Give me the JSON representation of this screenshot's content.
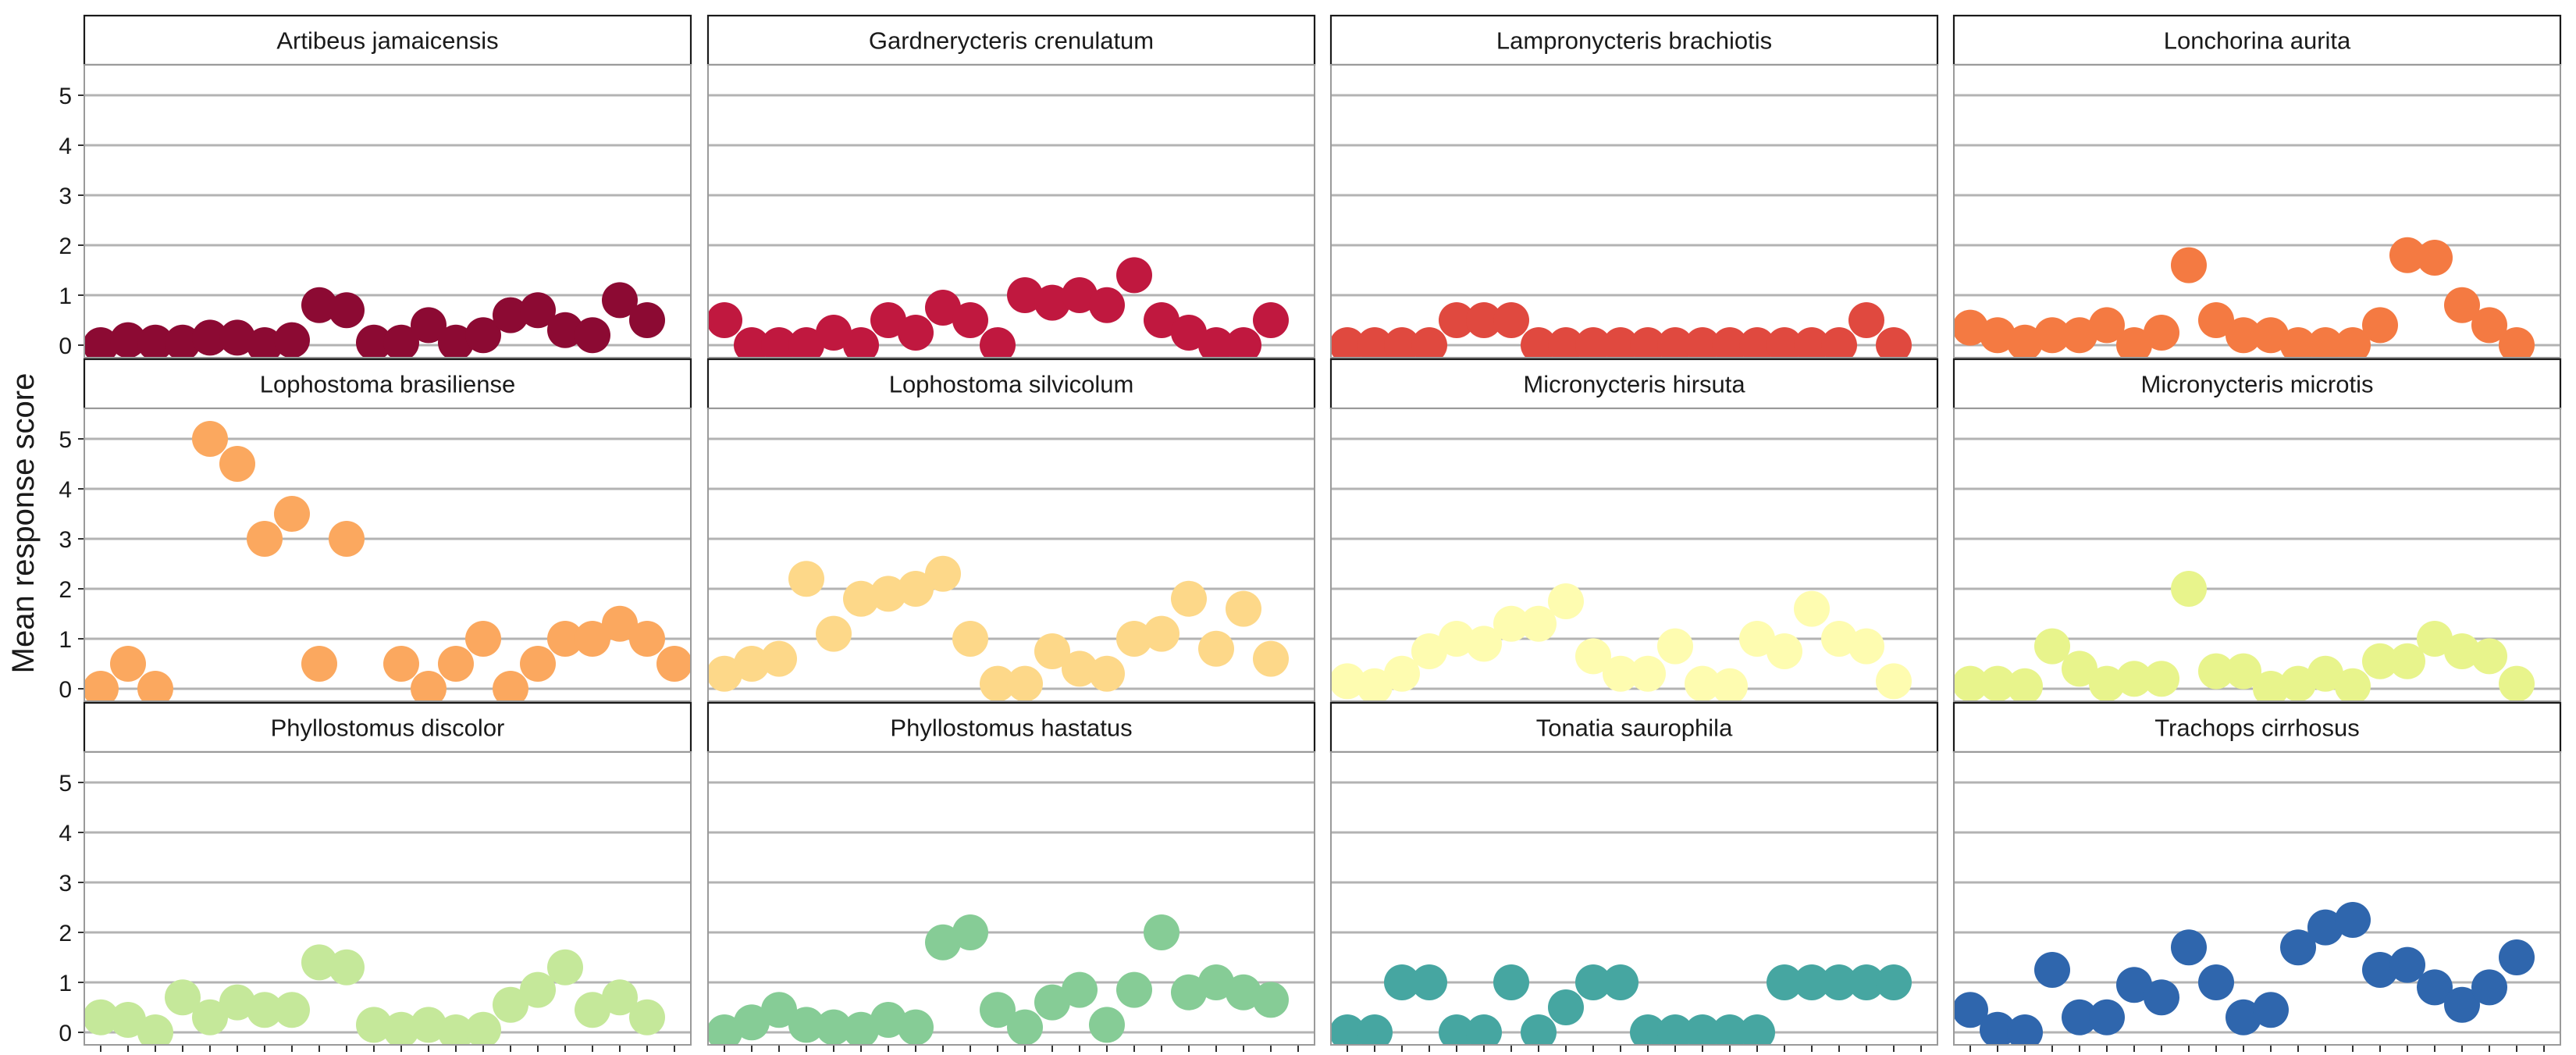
{
  "chart_data": {
    "type": "scatter",
    "layout": "facet-grid",
    "facet_cols": 4,
    "ylabel": "Mean response score",
    "xlabel": "",
    "ylim": [
      0,
      5
    ],
    "yticks": [
      0,
      1,
      2,
      3,
      4,
      5
    ],
    "grid": true,
    "legend": "none",
    "n_points_per_panel": 22,
    "panels": [
      {
        "title": "Artibeus jamaicensis",
        "color": "#8c0a33",
        "values": [
          0,
          0.1,
          0.05,
          0.05,
          0.15,
          0.15,
          0,
          0.1,
          0.8,
          0.7,
          0.05,
          0.05,
          0.4,
          0.05,
          0.2,
          0.6,
          0.7,
          0.3,
          0.2,
          0.9,
          0.5,
          null
        ]
      },
      {
        "title": "Gardnerycteris crenulatum",
        "color": "#c0183f",
        "values": [
          0.5,
          0,
          0,
          0,
          0.25,
          0,
          0.5,
          0.25,
          0.75,
          0.5,
          0,
          1.0,
          0.85,
          1.0,
          0.8,
          1.4,
          0.5,
          0.25,
          0,
          0,
          0.5,
          null
        ]
      },
      {
        "title": "Lampronycteris brachiotis",
        "color": "#e0493f",
        "values": [
          0,
          0,
          0,
          0,
          0.5,
          0.5,
          0.5,
          0,
          0,
          0,
          0,
          0,
          0,
          0,
          0,
          0,
          0,
          0,
          0,
          0.5,
          0,
          null
        ]
      },
      {
        "title": "Lonchorina aurita",
        "color": "#f47a42",
        "values": [
          0.35,
          0.2,
          0.05,
          0.2,
          0.2,
          0.4,
          0,
          0.25,
          1.6,
          0.5,
          0.2,
          0.2,
          0,
          0,
          0,
          0.4,
          1.8,
          1.75,
          0.8,
          0.4,
          0,
          null
        ]
      },
      {
        "title": "Lophostoma brasiliense",
        "color": "#fba85f",
        "values": [
          0,
          0.5,
          0,
          null,
          5.0,
          4.5,
          3.0,
          3.5,
          0.5,
          3.0,
          null,
          0.5,
          0,
          0.5,
          1.0,
          0,
          0.5,
          1.0,
          1.0,
          1.3,
          1.0,
          0.5
        ]
      },
      {
        "title": "Lophostoma silvicolum",
        "color": "#fdd889",
        "values": [
          0.3,
          0.5,
          0.6,
          2.2,
          1.1,
          1.8,
          1.9,
          2.0,
          2.3,
          1.0,
          0.1,
          0.1,
          0.75,
          0.4,
          0.3,
          1.0,
          1.1,
          1.8,
          0.8,
          1.6,
          0.6,
          null
        ]
      },
      {
        "title": "Micronycteris hirsuta",
        "color": "#fefcb0",
        "values": [
          0.15,
          0.05,
          0.3,
          0.75,
          1.0,
          0.9,
          1.3,
          1.3,
          1.75,
          0.65,
          0.3,
          0.3,
          0.85,
          0.1,
          0.05,
          1.0,
          0.75,
          1.6,
          1.0,
          0.85,
          0.15,
          null
        ]
      },
      {
        "title": "Micronycteris microtis",
        "color": "#e8f48c",
        "values": [
          0.1,
          0.1,
          0.05,
          0.85,
          0.4,
          0.1,
          0.2,
          0.2,
          2.0,
          0.35,
          0.35,
          0,
          0.1,
          0.3,
          0.05,
          0.55,
          0.55,
          1.0,
          0.75,
          0.65,
          0.1,
          null
        ]
      },
      {
        "title": "Phyllostomus discolor",
        "color": "#c5e89a",
        "values": [
          0.3,
          0.25,
          0,
          0.7,
          0.3,
          0.6,
          0.45,
          0.45,
          1.4,
          1.3,
          0.15,
          0.05,
          0.15,
          0,
          0.05,
          0.55,
          0.85,
          1.3,
          0.45,
          0.7,
          0.3,
          null
        ]
      },
      {
        "title": "Phyllostomus hastatus",
        "color": "#86cc96",
        "values": [
          0,
          0.2,
          0.45,
          0.15,
          0.1,
          0.05,
          0.25,
          0.1,
          1.8,
          2.0,
          0.45,
          0.1,
          0.6,
          0.85,
          0.15,
          0.85,
          2.0,
          0.8,
          1.0,
          0.8,
          0.65,
          null
        ]
      },
      {
        "title": "Tonatia saurophila",
        "color": "#46a6a1",
        "values": [
          0,
          0,
          1.0,
          1.0,
          0,
          0,
          1.0,
          0,
          0.5,
          1.0,
          1.0,
          0,
          0,
          0,
          0,
          0,
          1.0,
          1.0,
          1.0,
          1.0,
          1.0,
          null
        ]
      },
      {
        "title": "Trachops cirrhosus",
        "color": "#2f66ad",
        "values": [
          0.45,
          0.05,
          0,
          1.25,
          0.3,
          0.3,
          0.95,
          0.7,
          1.7,
          1.0,
          0.3,
          0.45,
          1.7,
          2.1,
          2.25,
          1.25,
          1.35,
          0.9,
          0.55,
          0.9,
          1.5,
          null
        ]
      }
    ]
  }
}
